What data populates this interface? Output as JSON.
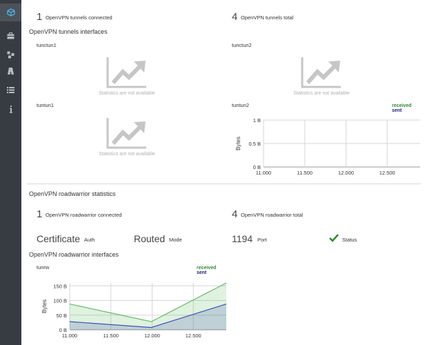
{
  "sidebar": {
    "items": [
      {
        "icon": "cube-icon",
        "active": true
      },
      {
        "icon": "briefcase-icon",
        "active": false
      },
      {
        "icon": "network-icon",
        "active": false
      },
      {
        "icon": "road-icon",
        "active": false
      },
      {
        "icon": "list-icon",
        "active": false
      },
      {
        "icon": "info-icon",
        "active": false
      }
    ]
  },
  "tunnels": {
    "connected_count": "1",
    "connected_label": "OpenVPN tunnels connected",
    "total_count": "4",
    "total_label": "OpenVPN tunnels total",
    "interfaces_title": "OpenVPN tunnels interfaces",
    "interfaces": [
      {
        "name": "tunctun1",
        "status": "Statistics are not available"
      },
      {
        "name": "tunctun2",
        "status": "Statistics are not available"
      },
      {
        "name": "tuntun1",
        "status": "Statistics are not available"
      },
      {
        "name": "tuntun2"
      }
    ]
  },
  "roadwarrior": {
    "title": "OpenVPN roadwarrior statistics",
    "connected_count": "1",
    "connected_label": "OpenVPN roadwarrior connected",
    "total_count": "4",
    "total_label": "OpenVPN roadwarrior total",
    "auth_value": "Certificate",
    "auth_label": "Auth",
    "mode_value": "Routed",
    "mode_label": "Mode",
    "port_value": "1194",
    "port_label": "Port",
    "status_label": "Status",
    "interfaces_title": "OpenVPN roadwarrior interfaces",
    "interface_name": "tunrw"
  },
  "colors": {
    "received": "#2e8b2e",
    "sent": "#1a237e",
    "status_ok": "#2e8b2e"
  },
  "chart_data": [
    {
      "type": "area",
      "interface": "tuntun2",
      "x": [],
      "series": [
        {
          "name": "received",
          "values": []
        },
        {
          "name": "sent",
          "values": []
        }
      ],
      "xlim": [
        11.0,
        12.9
      ],
      "xticks": [
        "11.000",
        "11.500",
        "12.000",
        "12.500"
      ],
      "ylim": [
        0,
        1
      ],
      "yticks": [
        "0 B",
        "0.5 B",
        "1 B"
      ],
      "ylabel": "Bytes",
      "legend": "top-right",
      "grid": true
    },
    {
      "type": "area",
      "interface": "tunrw",
      "x": [
        11.0,
        11.99,
        12.9
      ],
      "series": [
        {
          "name": "received",
          "values": [
            88,
            28,
            160
          ]
        },
        {
          "name": "sent",
          "values": [
            28,
            8,
            88
          ]
        }
      ],
      "xlim": [
        11.0,
        12.9
      ],
      "xticks": [
        "11.000",
        "11.500",
        "12.000",
        "12.500"
      ],
      "ylim": [
        0,
        160
      ],
      "yticks": [
        "0 B",
        "50 B",
        "100 B",
        "150 B"
      ],
      "ylabel": "Bytes",
      "legend": "top-right",
      "grid": true
    }
  ]
}
